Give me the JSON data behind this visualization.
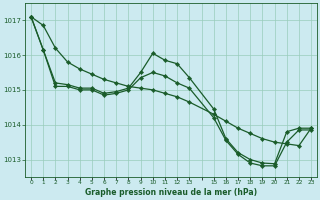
{
  "background_color": "#cceaf0",
  "plot_bg_color": "#cceaf0",
  "grid_color": "#99ccbb",
  "line_color": "#1a5c2a",
  "marker_color": "#1a5c2a",
  "xlabel": "Graphe pression niveau de la mer (hPa)",
  "ylim": [
    1012.5,
    1017.5
  ],
  "yticks": [
    1013,
    1014,
    1015,
    1016,
    1017
  ],
  "xlim": [
    -0.5,
    23.5
  ],
  "xtick_labels": [
    "0",
    "1",
    "2",
    "3",
    "4",
    "5",
    "6",
    "7",
    "8",
    "9",
    "10",
    "11",
    "12",
    "13",
    "",
    "15",
    "16",
    "17",
    "18",
    "19",
    "20",
    "21",
    "22",
    "23"
  ],
  "xtick_positions": [
    0,
    1,
    2,
    3,
    4,
    5,
    6,
    7,
    8,
    9,
    10,
    11,
    12,
    13,
    14,
    15,
    16,
    17,
    18,
    19,
    20,
    21,
    22,
    23
  ],
  "series": [
    {
      "x": [
        0,
        1,
        2,
        3,
        4,
        5,
        6,
        7,
        8,
        9,
        10,
        11,
        12,
        13,
        15,
        16,
        17,
        18,
        19,
        20,
        21,
        22,
        23
      ],
      "y": [
        1017.1,
        1016.85,
        1016.2,
        1015.8,
        1015.6,
        1015.45,
        1015.3,
        1015.2,
        1015.1,
        1015.05,
        1015.0,
        1014.9,
        1014.8,
        1014.65,
        1014.3,
        1014.1,
        1013.9,
        1013.75,
        1013.6,
        1013.5,
        1013.45,
        1013.4,
        1013.9
      ]
    },
    {
      "x": [
        0,
        1,
        2,
        3,
        4,
        5,
        6,
        7,
        8,
        9,
        10,
        11,
        12,
        13,
        15,
        16,
        17,
        18,
        19,
        20,
        21,
        22,
        23
      ],
      "y": [
        1017.1,
        1016.15,
        1015.2,
        1015.15,
        1015.05,
        1015.05,
        1014.9,
        1014.95,
        1015.05,
        1015.5,
        1016.05,
        1015.85,
        1015.75,
        1015.35,
        1014.45,
        1013.6,
        1013.2,
        1013.0,
        1012.9,
        1012.88,
        1013.8,
        1013.9,
        1013.9
      ]
    },
    {
      "x": [
        0,
        1,
        2,
        3,
        4,
        5,
        6,
        7,
        8,
        9,
        10,
        11,
        12,
        13,
        15,
        16,
        17,
        18,
        19,
        20,
        21,
        22,
        23
      ],
      "y": [
        1017.1,
        1016.15,
        1015.1,
        1015.1,
        1015.0,
        1015.0,
        1014.85,
        1014.9,
        1015.0,
        1015.35,
        1015.5,
        1015.4,
        1015.2,
        1015.05,
        1014.2,
        1013.55,
        1013.15,
        1012.9,
        1012.82,
        1012.82,
        1013.5,
        1013.85,
        1013.85
      ]
    }
  ]
}
